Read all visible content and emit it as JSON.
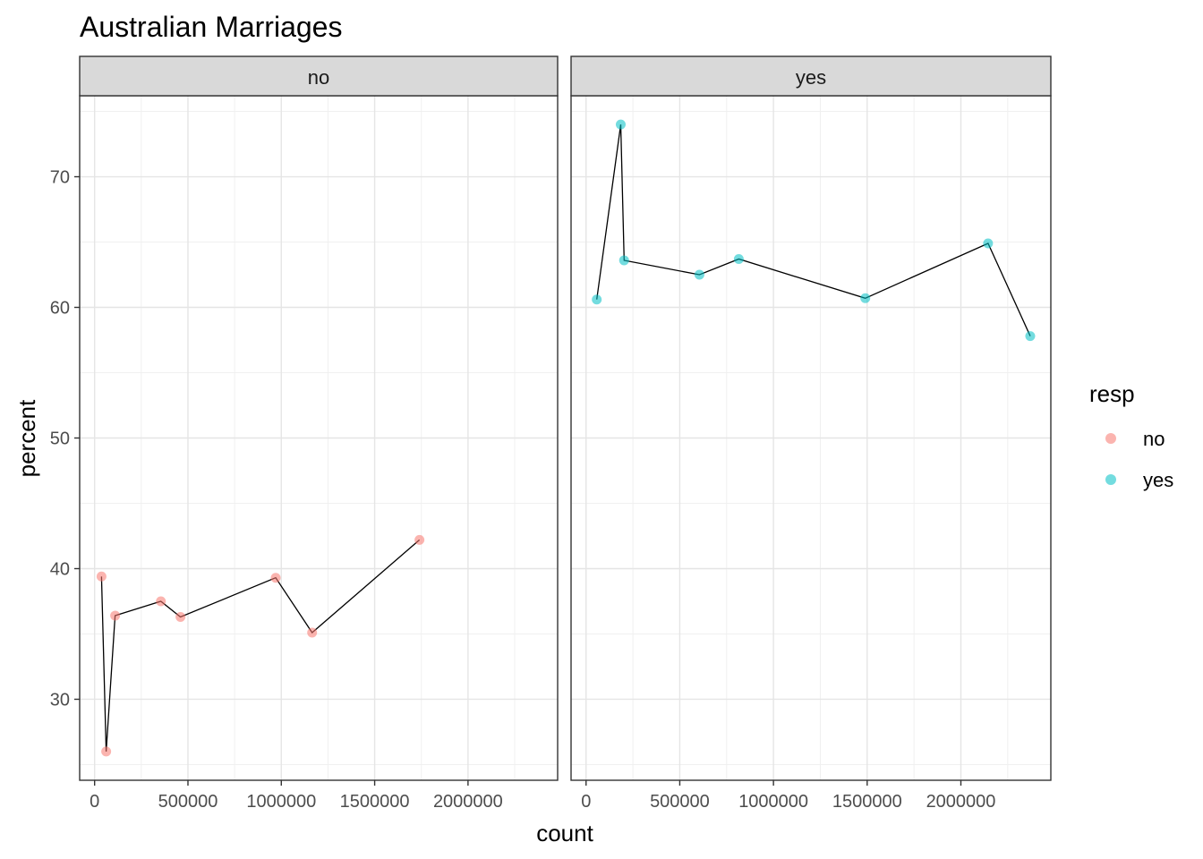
{
  "chart_data": {
    "type": "scatter",
    "title": "Australian Marriages",
    "xlabel": "count",
    "ylabel": "percent",
    "xlim": [
      -80000,
      2480000
    ],
    "ylim": [
      23.8,
      76.2
    ],
    "x_ticks": [
      0,
      500000,
      1000000,
      1500000,
      2000000
    ],
    "x_tick_labels": [
      "0",
      "500000",
      "1000000",
      "1500000",
      "2000000"
    ],
    "y_ticks": [
      30,
      40,
      50,
      60,
      70
    ],
    "y_tick_labels": [
      "30",
      "40",
      "50",
      "60",
      "70"
    ],
    "grid": true,
    "legend": {
      "title": "resp",
      "position": "right",
      "entries": [
        {
          "label": "no",
          "color": "#F8766D"
        },
        {
          "label": "yes",
          "color": "#00BFC4"
        }
      ]
    },
    "facets": [
      {
        "strip": "no",
        "color": "#F8766D",
        "x": [
          37000,
          62000,
          110000,
          355000,
          460000,
          970000,
          1165000,
          1740000
        ],
        "y": [
          39.4,
          26.0,
          36.4,
          37.5,
          36.3,
          39.3,
          35.1,
          42.2
        ]
      },
      {
        "strip": "yes",
        "color": "#00BFC4",
        "x": [
          57000,
          185000,
          203000,
          605000,
          815000,
          1490000,
          2145000,
          2370000
        ],
        "y": [
          60.6,
          74.0,
          63.6,
          62.5,
          63.7,
          60.7,
          64.9,
          57.8
        ]
      }
    ]
  }
}
